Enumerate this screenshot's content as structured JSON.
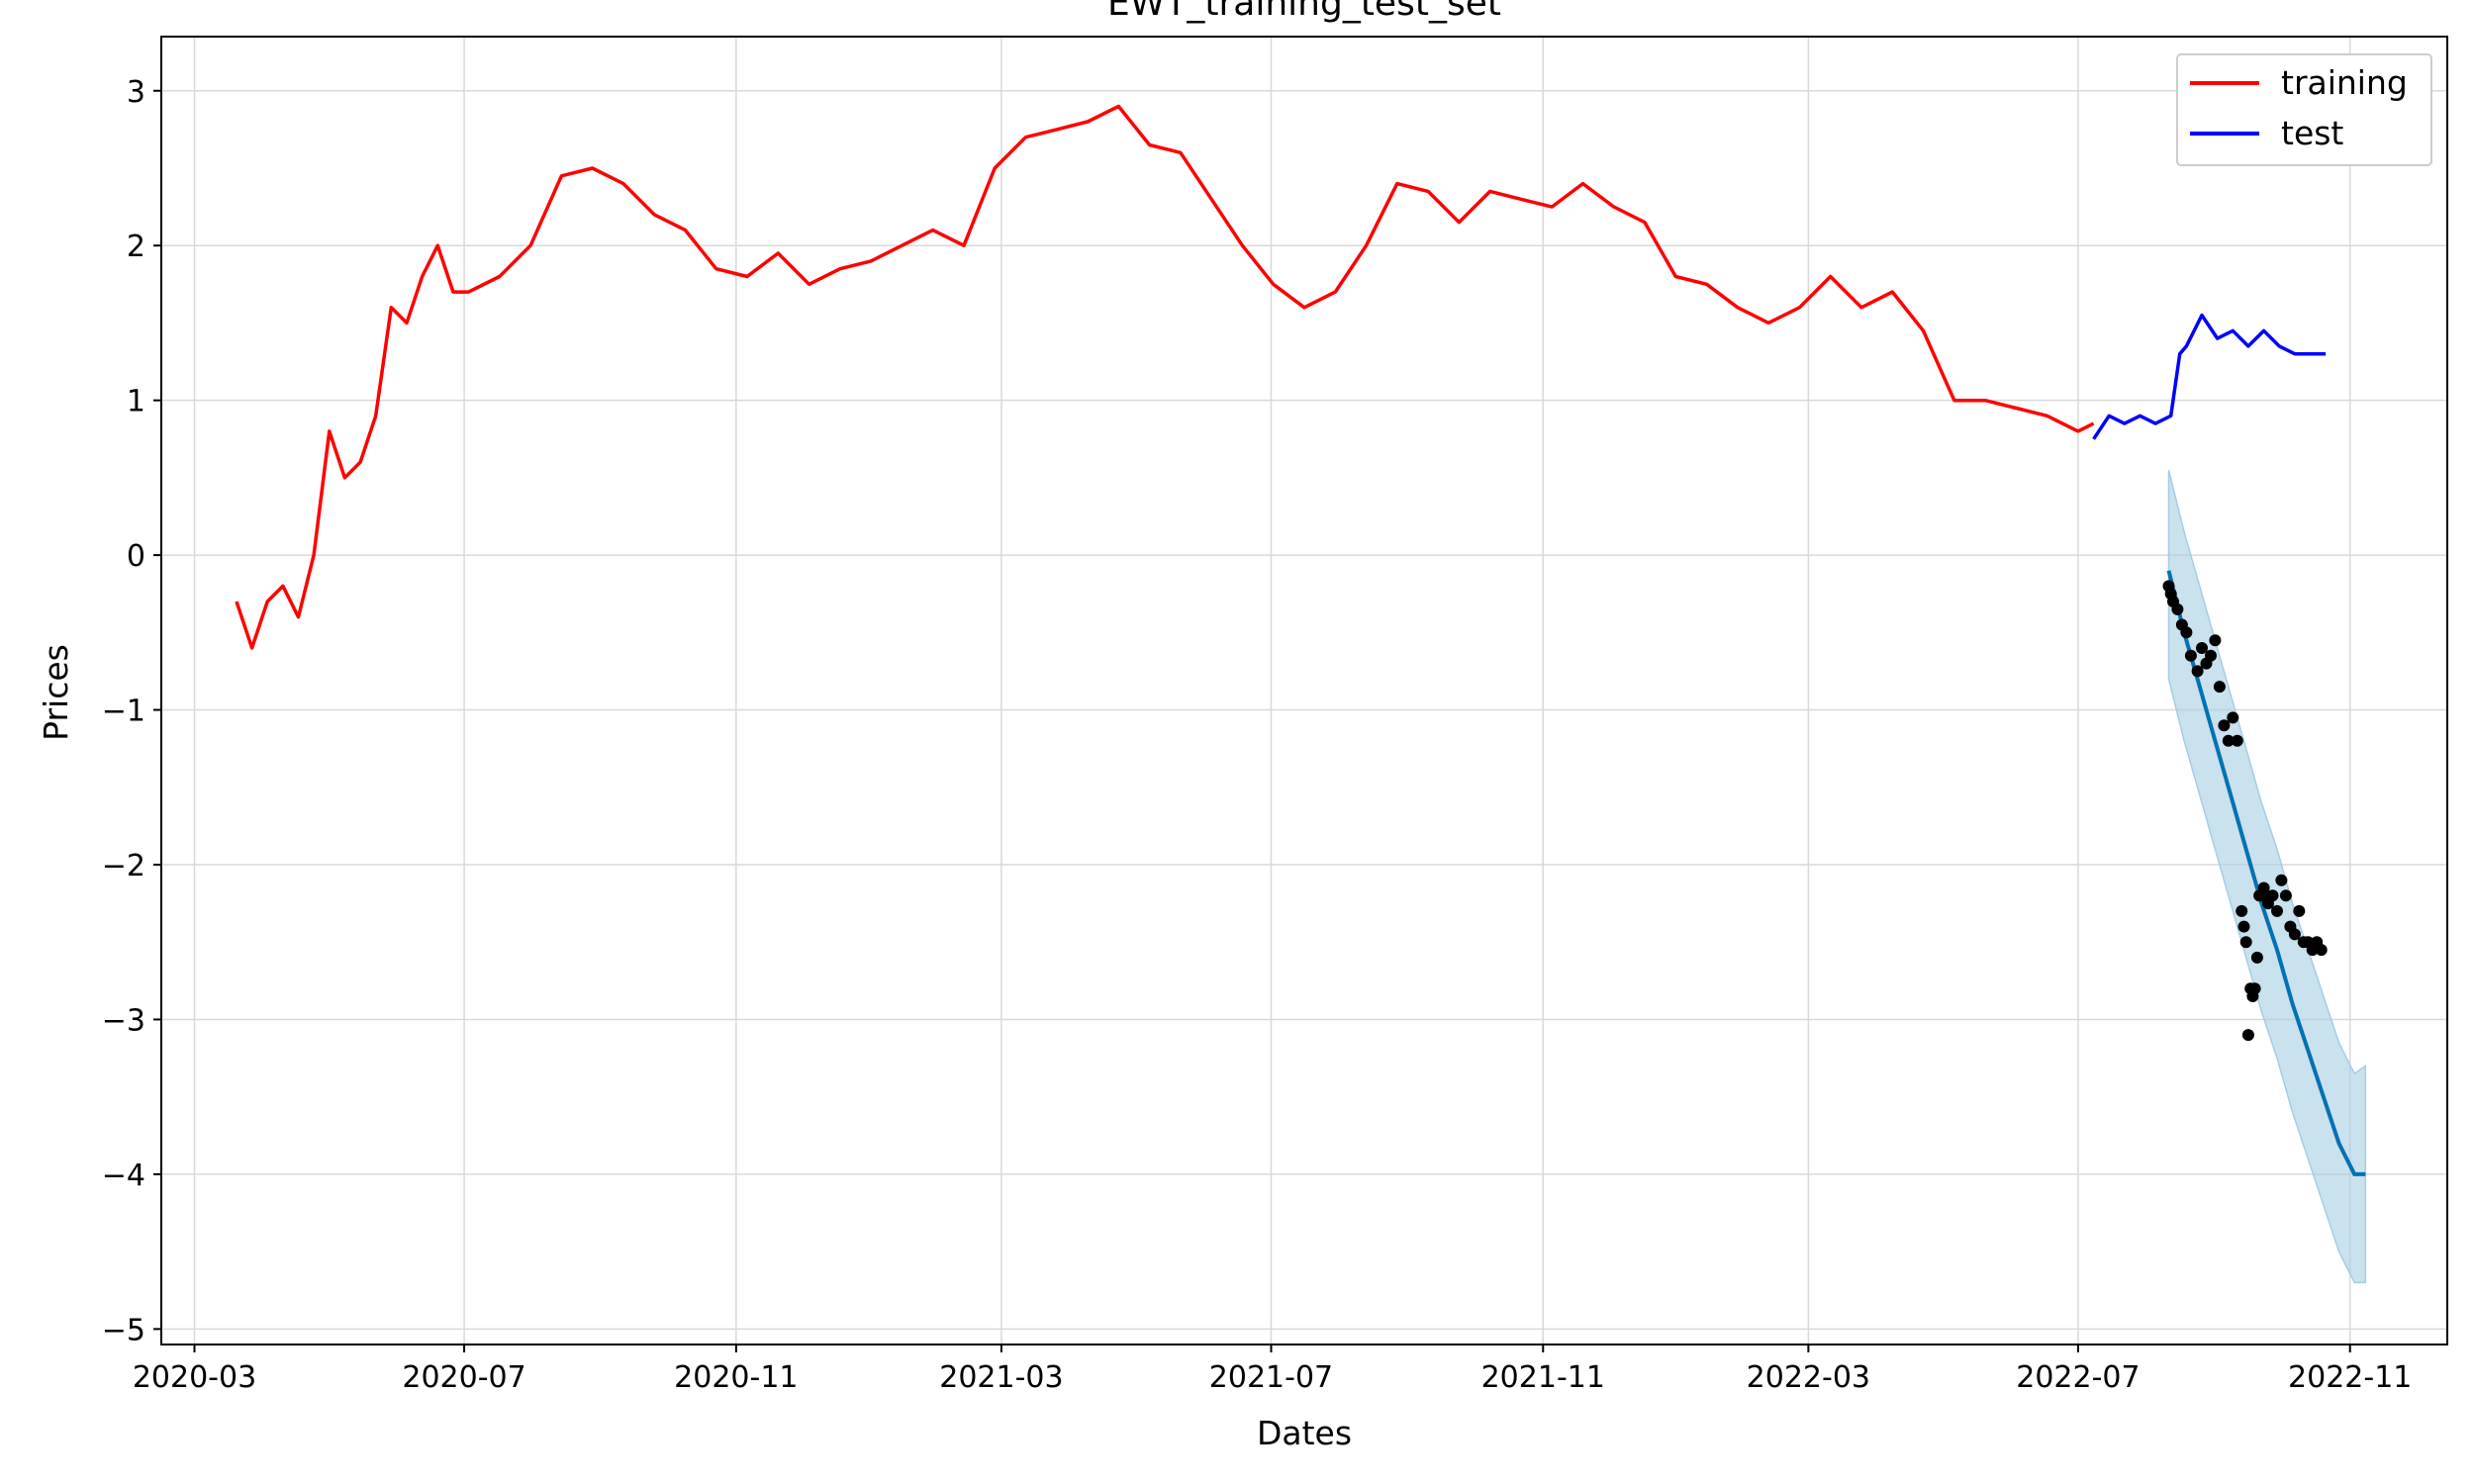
{
  "chart_data": {
    "type": "line",
    "title": "EWT_training_test_set",
    "xlabel": "Dates",
    "ylabel": "Prices",
    "xlim": [
      "2020-02-15",
      "2022-12-15"
    ],
    "ylim": [
      -5.1,
      3.35
    ],
    "grid": true,
    "legend_position": "top-right",
    "x_ticks": [
      "2020-03",
      "2020-07",
      "2020-11",
      "2021-03",
      "2021-07",
      "2021-11",
      "2022-03",
      "2022-07",
      "2022-11"
    ],
    "y_ticks": [
      "3",
      "2",
      "1",
      "0",
      "−1",
      "−2",
      "−3",
      "−4",
      "−5"
    ],
    "y_tick_values": [
      3,
      2,
      1,
      0,
      -1,
      -2,
      -3,
      -4,
      -5
    ],
    "colors": {
      "training": "#ff0000",
      "test": "#0000ff",
      "forecast": "#0072b2",
      "interval": "#a6cde3",
      "observed": "#000000",
      "grid": "#d9d9d9"
    },
    "series": [
      {
        "name": "training",
        "x": [
          "2020-03-20",
          "2020-03-27",
          "2020-04-03",
          "2020-04-10",
          "2020-04-17",
          "2020-04-24",
          "2020-05-01",
          "2020-05-08",
          "2020-05-15",
          "2020-05-22",
          "2020-05-29",
          "2020-06-05",
          "2020-06-12",
          "2020-06-19",
          "2020-06-26",
          "2020-07-03",
          "2020-07-17",
          "2020-07-31",
          "2020-08-14",
          "2020-08-28",
          "2020-09-11",
          "2020-09-25",
          "2020-10-09",
          "2020-10-23",
          "2020-11-06",
          "2020-11-20",
          "2020-12-04",
          "2020-12-18",
          "2021-01-01",
          "2021-01-15",
          "2021-01-29",
          "2021-02-12",
          "2021-02-26",
          "2021-03-12",
          "2021-03-26",
          "2021-04-09",
          "2021-04-23",
          "2021-05-07",
          "2021-05-21",
          "2021-06-04",
          "2021-06-18",
          "2021-07-02",
          "2021-07-16",
          "2021-07-30",
          "2021-08-13",
          "2021-08-27",
          "2021-09-10",
          "2021-09-24",
          "2021-10-08",
          "2021-10-22",
          "2021-11-05",
          "2021-11-19",
          "2021-12-03",
          "2021-12-17",
          "2021-12-31",
          "2022-01-14",
          "2022-01-28",
          "2022-02-11",
          "2022-02-25",
          "2022-03-11",
          "2022-03-25",
          "2022-04-08",
          "2022-04-22",
          "2022-05-06",
          "2022-05-20",
          "2022-06-03",
          "2022-06-17",
          "2022-07-01",
          "2022-07-08"
        ],
        "values": [
          -0.3,
          -0.6,
          -0.3,
          -0.2,
          -0.4,
          0.0,
          0.8,
          0.5,
          0.6,
          0.9,
          1.6,
          1.5,
          1.8,
          2.0,
          1.7,
          1.7,
          1.8,
          2.0,
          2.45,
          2.5,
          2.4,
          2.2,
          2.1,
          1.85,
          1.8,
          1.95,
          1.75,
          1.85,
          1.9,
          2.0,
          2.1,
          2.0,
          2.5,
          2.7,
          2.75,
          2.8,
          2.9,
          2.65,
          2.6,
          2.3,
          2.0,
          1.75,
          1.6,
          1.7,
          2.0,
          2.4,
          2.35,
          2.15,
          2.35,
          2.3,
          2.25,
          2.4,
          2.25,
          2.15,
          1.8,
          1.75,
          1.6,
          1.5,
          1.6,
          1.8,
          1.6,
          1.7,
          1.45,
          1.0,
          1.0,
          0.95,
          0.9,
          0.8,
          0.85
        ]
      },
      {
        "name": "test",
        "x": [
          "2022-07-08",
          "2022-07-15",
          "2022-07-22",
          "2022-07-29",
          "2022-08-05",
          "2022-08-12",
          "2022-08-16",
          "2022-08-19",
          "2022-08-26",
          "2022-09-02",
          "2022-09-09",
          "2022-09-16",
          "2022-09-23",
          "2022-09-30",
          "2022-10-07",
          "2022-10-14",
          "2022-10-21"
        ],
        "values": [
          0.75,
          0.9,
          0.85,
          0.9,
          0.85,
          0.9,
          1.3,
          1.35,
          1.55,
          1.4,
          1.45,
          1.35,
          1.45,
          1.35,
          1.3,
          1.3,
          1.3
        ]
      }
    ],
    "forecast": {
      "x": [
        "2022-08-11",
        "2022-08-18",
        "2022-08-25",
        "2022-09-01",
        "2022-09-08",
        "2022-09-15",
        "2022-09-22",
        "2022-09-29",
        "2022-10-06",
        "2022-10-13",
        "2022-10-20",
        "2022-10-27",
        "2022-11-03",
        "2022-11-08"
      ],
      "yhat": [
        -0.1,
        -0.5,
        -0.85,
        -1.2,
        -1.55,
        -1.9,
        -2.25,
        -2.55,
        -2.9,
        -3.2,
        -3.5,
        -3.8,
        -4.0,
        -4.0
      ],
      "lower": [
        -0.8,
        -1.2,
        -1.55,
        -1.9,
        -2.25,
        -2.6,
        -2.95,
        -3.25,
        -3.6,
        -3.9,
        -4.2,
        -4.5,
        -4.7,
        -4.7
      ],
      "upper": [
        0.55,
        0.15,
        -0.2,
        -0.55,
        -0.9,
        -1.25,
        -1.6,
        -1.9,
        -2.25,
        -2.55,
        -2.85,
        -3.15,
        -3.35,
        -3.3
      ]
    },
    "observed_points": {
      "x": [
        "2022-08-11",
        "2022-08-12",
        "2022-08-13",
        "2022-08-15",
        "2022-08-17",
        "2022-08-19",
        "2022-08-21",
        "2022-08-24",
        "2022-08-26",
        "2022-08-28",
        "2022-08-30",
        "2022-09-01",
        "2022-09-03",
        "2022-09-05",
        "2022-09-07",
        "2022-09-09",
        "2022-09-11",
        "2022-09-13",
        "2022-09-14",
        "2022-09-15",
        "2022-09-16",
        "2022-09-17",
        "2022-09-18",
        "2022-09-19",
        "2022-09-20",
        "2022-09-21",
        "2022-09-22",
        "2022-09-23",
        "2022-09-25",
        "2022-09-27",
        "2022-09-29",
        "2022-10-01",
        "2022-10-03",
        "2022-10-05",
        "2022-10-07",
        "2022-10-09",
        "2022-10-11",
        "2022-10-13",
        "2022-10-15",
        "2022-10-17",
        "2022-10-19"
      ],
      "values": [
        -0.2,
        -0.25,
        -0.3,
        -0.35,
        -0.45,
        -0.5,
        -0.65,
        -0.75,
        -0.6,
        -0.7,
        -0.65,
        -0.55,
        -0.85,
        -1.1,
        -1.2,
        -1.05,
        -1.2,
        -2.3,
        -2.4,
        -2.5,
        -3.1,
        -2.8,
        -2.85,
        -2.8,
        -2.6,
        -2.2,
        -2.2,
        -2.15,
        -2.25,
        -2.2,
        -2.3,
        -2.1,
        -2.2,
        -2.4,
        -2.45,
        -2.3,
        -2.5,
        -2.5,
        -2.55,
        -2.5,
        -2.55
      ]
    }
  }
}
